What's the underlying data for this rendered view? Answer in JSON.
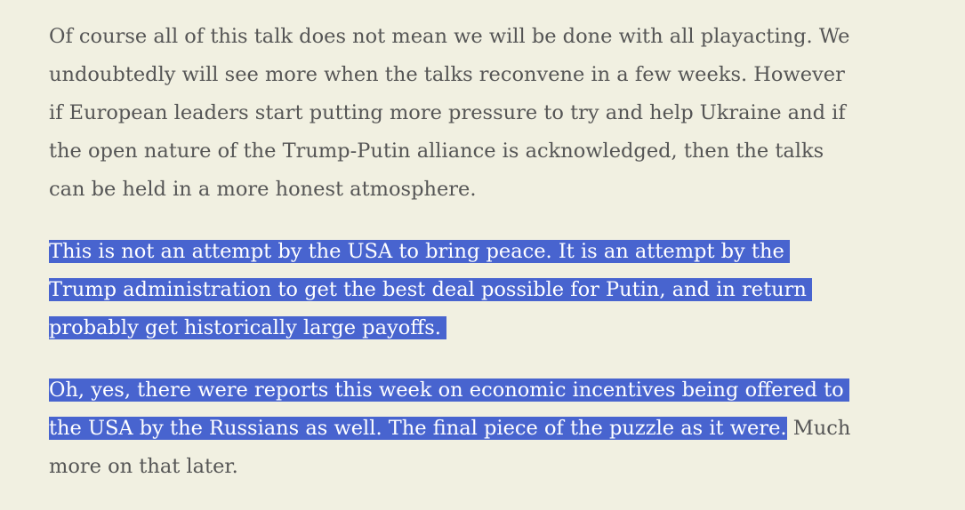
{
  "colors": {
    "background": "#f1f0e1",
    "text": "#555555",
    "selection": "#4864cf",
    "selection_text": "#ffffff"
  },
  "paragraphs": [
    {
      "lines": [
        "Of course all of this talk does not mean we will be done with all playacting. We",
        "undoubtedly will see more when the talks reconvene in a few weeks. However",
        "if European leaders start putting more pressure to try and help Ukraine and if",
        "the open nature of the Trump-Putin alliance is acknowledged, then the talks",
        "can be held in a more honest atmosphere."
      ]
    },
    {
      "selected_lines": [
        "This is not an attempt by the USA to bring peace. It is an attempt by the",
        "Trump administration to get the best deal possible for Putin, and in return",
        "probably get historically large payoffs."
      ]
    },
    {
      "selected_lines": [
        "Oh, yes, there were reports this week on economic incentives being offered to",
        "the USA by the Russians as well. The final piece of the puzzle as it were."
      ],
      "unselected_tail": " Much",
      "last_line": "more on that later."
    }
  ]
}
